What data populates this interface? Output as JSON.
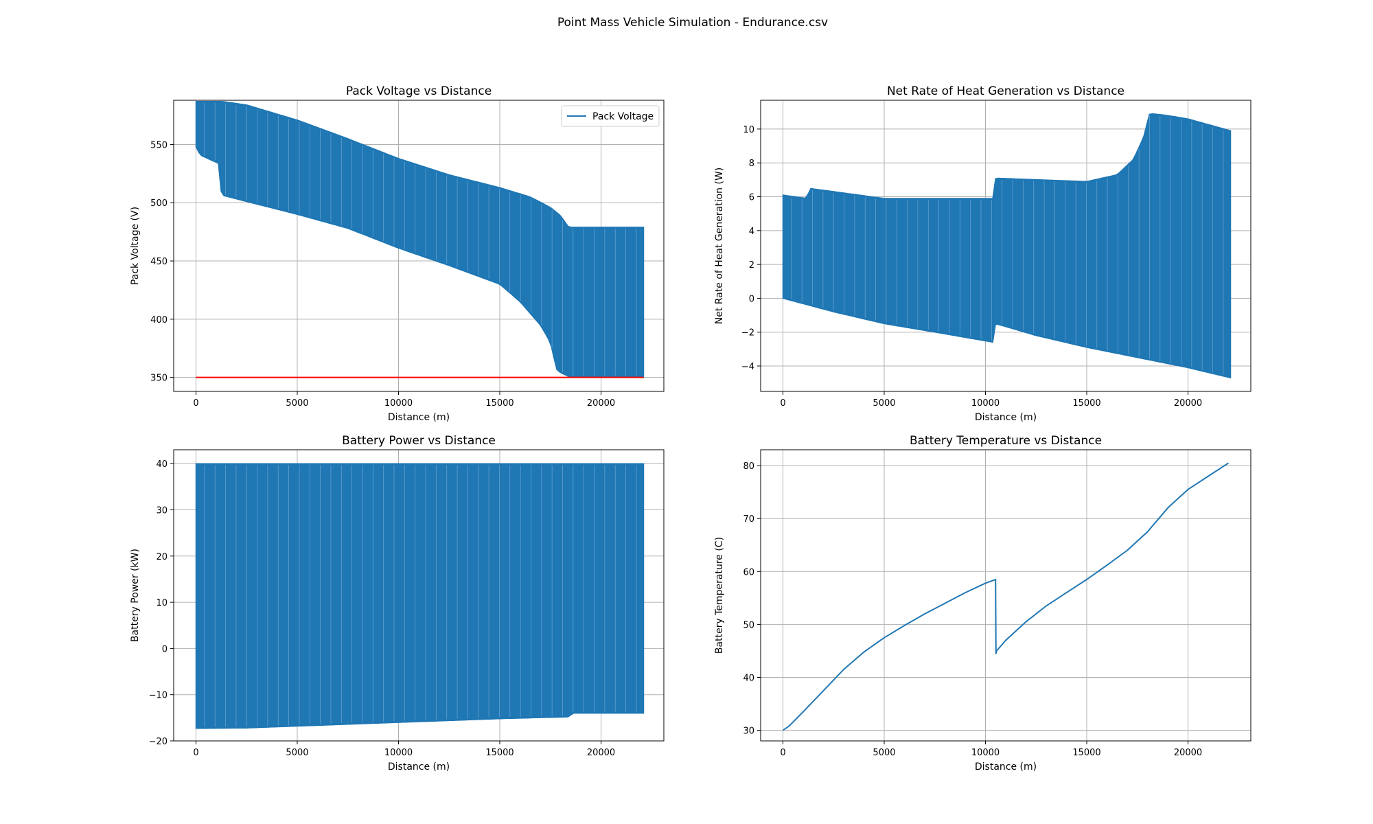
{
  "figure": {
    "suptitle": "Point Mass Vehicle Simulation - Endurance.csv",
    "series_color": "#1f77b4",
    "reference_color": "#ff0000",
    "grid_color": "#b0b0b0"
  },
  "chart_data": [
    {
      "type": "line",
      "title": "Pack Voltage vs Distance",
      "xlabel": "Distance (m)",
      "ylabel": "Pack Voltage (V)",
      "xlim": [
        -1100,
        23100
      ],
      "ylim": [
        338,
        588
      ],
      "xticks": [
        0,
        5000,
        10000,
        15000,
        20000
      ],
      "yticks": [
        350,
        400,
        450,
        500,
        550
      ],
      "grid": true,
      "legend": {
        "placement": "upper right",
        "entries": [
          "Pack Voltage"
        ]
      },
      "reference_line": {
        "y": 350,
        "x": [
          0,
          22100
        ],
        "color": "#ff0000"
      },
      "series": [
        {
          "name": "Pack Voltage",
          "style": "oscillating band",
          "upper": {
            "x": [
              0,
              200,
              1300,
              2500,
              5000,
              7500,
              10000,
              12500,
              15000,
              16500,
              17500,
              18000,
              18400,
              18500,
              22100
            ],
            "y": [
              587,
              587,
              587,
              584,
              571,
              555,
              538,
              524,
              513,
              505,
              496,
              489,
              479,
              479,
              479
            ]
          },
          "lower": {
            "x": [
              0,
              200,
              1200,
              1250,
              1400,
              2500,
              5000,
              7500,
              10000,
              12500,
              15000,
              16000,
              17000,
              17500,
              17800,
              18000,
              18500,
              22100
            ],
            "y": [
              548,
              541,
              533,
              506,
              506,
              501,
              490,
              478,
              461,
              446,
              430,
              415,
              395,
              380,
              357,
              354,
              350,
              350
            ]
          }
        }
      ]
    },
    {
      "type": "line",
      "title": "Net Rate of Heat Generation vs Distance",
      "xlabel": "Distance (m)",
      "ylabel": "Net Rate of Heat Generation (W)",
      "xlim": [
        -1100,
        23100
      ],
      "ylim": [
        -5.5,
        11.7
      ],
      "xticks": [
        0,
        5000,
        10000,
        15000,
        20000
      ],
      "yticks": [
        -4,
        -2,
        0,
        2,
        4,
        6,
        8,
        10
      ],
      "grid": true,
      "series": [
        {
          "style": "oscillating band",
          "upper": {
            "x": [
              0,
              1200,
              1300,
              5000,
              10400,
              10500,
              15000,
              16500,
              17300,
              17800,
              18100,
              18300,
              19000,
              20000,
              22100
            ],
            "y": [
              6.1,
              5.9,
              6.5,
              5.9,
              5.9,
              7.1,
              6.9,
              7.3,
              8.2,
              9.5,
              10.9,
              10.9,
              10.8,
              10.6,
              9.9
            ]
          },
          "lower": {
            "x": [
              0,
              2500,
              5000,
              7500,
              10400,
              10500,
              12500,
              15000,
              17500,
              20000,
              22100
            ],
            "y": [
              0.0,
              -0.8,
              -1.5,
              -2.0,
              -2.6,
              -1.5,
              -2.2,
              -2.9,
              -3.5,
              -4.1,
              -4.7
            ]
          }
        }
      ]
    },
    {
      "type": "line",
      "title": "Battery Power vs Distance",
      "xlabel": "Distance (m)",
      "ylabel": "Battery Power (kW)",
      "xlim": [
        -1100,
        23100
      ],
      "ylim": [
        -20,
        43
      ],
      "xticks": [
        0,
        5000,
        10000,
        15000,
        20000
      ],
      "yticks": [
        -20,
        -10,
        0,
        10,
        20,
        30,
        40
      ],
      "grid": true,
      "series": [
        {
          "style": "oscillating band",
          "upper": {
            "x": [
              0,
              22100
            ],
            "y": [
              40,
              40
            ]
          },
          "lower": {
            "x": [
              0,
              2500,
              5000,
              10000,
              15000,
              18400,
              18600,
              22100
            ],
            "y": [
              -17.3,
              -17.2,
              -16.8,
              -16.0,
              -15.2,
              -14.8,
              -14.0,
              -14.0
            ]
          }
        }
      ]
    },
    {
      "type": "line",
      "title": "Battery Temperature vs Distance",
      "xlabel": "Distance (m)",
      "ylabel": "Battery Temperature (C)",
      "xlim": [
        -1100,
        23100
      ],
      "ylim": [
        28,
        83
      ],
      "xticks": [
        0,
        5000,
        10000,
        15000,
        20000
      ],
      "yticks": [
        30,
        40,
        50,
        60,
        70,
        80
      ],
      "grid": true,
      "series": [
        {
          "x": [
            0,
            300,
            1000,
            2000,
            3000,
            4000,
            5000,
            6000,
            7000,
            8000,
            9000,
            10000,
            10500,
            10520,
            10550,
            11000,
            12000,
            13000,
            14000,
            15000,
            16000,
            17000,
            18000,
            19000,
            20000,
            21000,
            22000
          ],
          "y": [
            30,
            30.8,
            33.5,
            37.5,
            41.5,
            44.8,
            47.5,
            49.8,
            52,
            54,
            56,
            57.8,
            58.5,
            44.5,
            45,
            47,
            50.5,
            53.5,
            56,
            58.5,
            61.2,
            64,
            67.5,
            72,
            75.5,
            78,
            80.5
          ]
        }
      ]
    }
  ]
}
